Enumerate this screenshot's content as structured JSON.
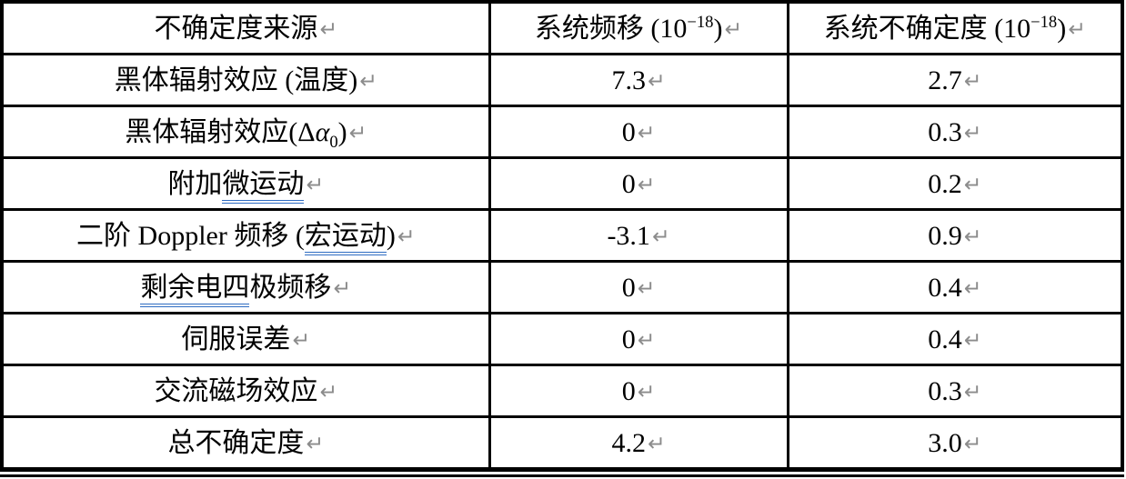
{
  "document": {
    "formatting_mark": "↵",
    "colors": {
      "border": "#000000",
      "text": "#000000",
      "return_mark": "#8c8c8c",
      "grammar_underline": "#2f6cc2"
    }
  },
  "table": {
    "header": [
      {
        "runs": [
          {
            "t": "不确定度来源"
          }
        ]
      },
      {
        "runs": [
          {
            "t": "系统频移 (10"
          },
          {
            "t": "−18",
            "sup": true
          },
          {
            "t": ")"
          }
        ]
      },
      {
        "runs": [
          {
            "t": "系统不确定度 (10"
          },
          {
            "t": "−18",
            "sup": true
          },
          {
            "t": ")"
          }
        ]
      }
    ],
    "rows": [
      [
        {
          "runs": [
            {
              "t": "黑体辐射效应 (温度)"
            }
          ]
        },
        {
          "runs": [
            {
              "t": "7.3"
            }
          ]
        },
        {
          "runs": [
            {
              "t": "2.7"
            }
          ]
        }
      ],
      [
        {
          "runs": [
            {
              "t": "黑体辐射效应(Δ"
            },
            {
              "t": "α",
              "i": true
            },
            {
              "t": "0",
              "sub": true
            },
            {
              "t": ")"
            }
          ]
        },
        {
          "runs": [
            {
              "t": "0"
            }
          ]
        },
        {
          "runs": [
            {
              "t": "0.3"
            }
          ]
        }
      ],
      [
        {
          "runs": [
            {
              "t": "附加"
            },
            {
              "t": "微运动",
              "u": true
            }
          ]
        },
        {
          "runs": [
            {
              "t": "0"
            }
          ]
        },
        {
          "runs": [
            {
              "t": "0.2"
            }
          ]
        }
      ],
      [
        {
          "runs": [
            {
              "t": "二阶 Doppler 频移 ("
            },
            {
              "t": "宏运动",
              "u": true
            },
            {
              "t": ")"
            }
          ]
        },
        {
          "runs": [
            {
              "t": "-3.1"
            }
          ]
        },
        {
          "runs": [
            {
              "t": "0.9"
            }
          ]
        }
      ],
      [
        {
          "runs": [
            {
              "t": "剩余电四",
              "u": true
            },
            {
              "t": "极频移"
            }
          ]
        },
        {
          "runs": [
            {
              "t": "0"
            }
          ]
        },
        {
          "runs": [
            {
              "t": "0.4"
            }
          ]
        }
      ],
      [
        {
          "runs": [
            {
              "t": "伺服误差"
            }
          ]
        },
        {
          "runs": [
            {
              "t": "0"
            }
          ]
        },
        {
          "runs": [
            {
              "t": "0.4"
            }
          ]
        }
      ],
      [
        {
          "runs": [
            {
              "t": "交流磁场效应"
            }
          ]
        },
        {
          "runs": [
            {
              "t": "0"
            }
          ]
        },
        {
          "runs": [
            {
              "t": "0.3"
            }
          ]
        }
      ],
      [
        {
          "runs": [
            {
              "t": "总不确定度"
            }
          ]
        },
        {
          "runs": [
            {
              "t": "4.2"
            }
          ]
        },
        {
          "runs": [
            {
              "t": "3.0"
            }
          ]
        }
      ]
    ]
  }
}
